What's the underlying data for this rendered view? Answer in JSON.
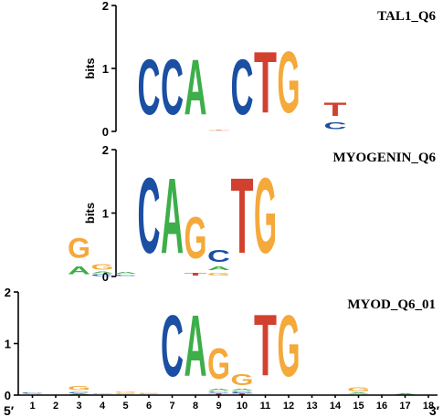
{
  "colors": {
    "A": "#3dae4a",
    "C": "#1a4fa3",
    "G": "#f4a93a",
    "T": "#d2412f"
  },
  "y_axis_label": "bits",
  "five_prime_label": "5′",
  "three_prime_label": "3′",
  "position_labels": [
    "1",
    "2",
    "3",
    "4",
    "5",
    "6",
    "7",
    "8",
    "9",
    "10",
    "11",
    "12",
    "13",
    "14",
    "15",
    "16",
    "17",
    "18"
  ],
  "chart_data": [
    {
      "type": "sequence-logo",
      "title": "TAL1_Q6",
      "ylabel": "bits",
      "ylim": [
        0,
        2
      ],
      "yticks": [
        "0",
        "1",
        "2"
      ],
      "start_position": 6,
      "columns": [
        {
          "position": 6,
          "letters": [
            {
              "base": "C",
              "bits": 1.4
            }
          ]
        },
        {
          "position": 7,
          "letters": [
            {
              "base": "C",
              "bits": 1.4
            }
          ]
        },
        {
          "position": 8,
          "letters": [
            {
              "base": "A",
              "bits": 1.4
            }
          ]
        },
        {
          "position": 9,
          "letters": [
            {
              "base": "G",
              "bits": 0.02
            },
            {
              "base": "T",
              "bits": 0.02
            }
          ]
        },
        {
          "position": 10,
          "letters": [
            {
              "base": "C",
              "bits": 1.4
            }
          ]
        },
        {
          "position": 11,
          "letters": [
            {
              "base": "T",
              "bits": 1.55
            }
          ]
        },
        {
          "position": 12,
          "letters": [
            {
              "base": "G",
              "bits": 1.55
            }
          ]
        },
        {
          "position": 13,
          "letters": []
        },
        {
          "position": 14,
          "letters": [
            {
              "base": "C",
              "bits": 0.18
            },
            {
              "base": "T",
              "bits": 0.35
            }
          ]
        }
      ]
    },
    {
      "type": "sequence-logo",
      "title": "MYOGENIN_Q6",
      "ylabel": "bits",
      "ylim": [
        0,
        2
      ],
      "yticks": [
        "0",
        "1",
        "2"
      ],
      "start_position": 3,
      "columns": [
        {
          "position": 3,
          "letters": [
            {
              "base": "A",
              "bits": 0.2
            },
            {
              "base": "G",
              "bits": 0.5
            }
          ]
        },
        {
          "position": 4,
          "letters": [
            {
              "base": "C",
              "bits": 0.04
            },
            {
              "base": "A",
              "bits": 0.04
            },
            {
              "base": "G",
              "bits": 0.14
            }
          ]
        },
        {
          "position": 5,
          "letters": [
            {
              "base": "C",
              "bits": 0.03
            },
            {
              "base": "A",
              "bits": 0.05
            }
          ]
        },
        {
          "position": 6,
          "letters": [
            {
              "base": "C",
              "bits": 1.9
            }
          ]
        },
        {
          "position": 7,
          "letters": [
            {
              "base": "A",
              "bits": 1.9
            }
          ]
        },
        {
          "position": 8,
          "letters": [
            {
              "base": "T",
              "bits": 0.08
            },
            {
              "base": "G",
              "bits": 1.05
            }
          ]
        },
        {
          "position": 9,
          "letters": [
            {
              "base": "G",
              "bits": 0.08
            },
            {
              "base": "A",
              "bits": 0.09
            },
            {
              "base": "C",
              "bits": 0.3
            }
          ]
        },
        {
          "position": 10,
          "letters": [
            {
              "base": "T",
              "bits": 1.9
            }
          ]
        },
        {
          "position": 11,
          "letters": [
            {
              "base": "G",
              "bits": 1.9
            }
          ]
        }
      ]
    },
    {
      "type": "sequence-logo",
      "title": "MYOD_Q6_01",
      "ylabel": "bits",
      "ylim": [
        0,
        2
      ],
      "yticks": [
        "0",
        "1",
        "2"
      ],
      "start_position": 1,
      "columns": [
        {
          "position": 1,
          "letters": [
            {
              "base": "G",
              "bits": 0.02
            },
            {
              "base": "C",
              "bits": 0.03
            }
          ]
        },
        {
          "position": 2,
          "letters": []
        },
        {
          "position": 3,
          "letters": [
            {
              "base": "A",
              "bits": 0.03
            },
            {
              "base": "C",
              "bits": 0.04
            },
            {
              "base": "G",
              "bits": 0.12
            }
          ]
        },
        {
          "position": 4,
          "letters": [
            {
              "base": "G",
              "bits": 0.02
            },
            {
              "base": "C",
              "bits": 0.02
            }
          ]
        },
        {
          "position": 5,
          "letters": [
            {
              "base": "A",
              "bits": 0.02
            },
            {
              "base": "C",
              "bits": 0.02
            },
            {
              "base": "G",
              "bits": 0.04
            }
          ]
        },
        {
          "position": 6,
          "letters": [
            {
              "base": "A",
              "bits": 0.02
            },
            {
              "base": "C",
              "bits": 0.02
            },
            {
              "base": "G",
              "bits": 0.02
            }
          ]
        },
        {
          "position": 7,
          "letters": [
            {
              "base": "C",
              "bits": 1.9
            }
          ]
        },
        {
          "position": 8,
          "letters": [
            {
              "base": "A",
              "bits": 1.9
            }
          ]
        },
        {
          "position": 9,
          "letters": [
            {
              "base": "T",
              "bits": 0.04
            },
            {
              "base": "C",
              "bits": 0.04
            },
            {
              "base": "A",
              "bits": 0.05
            },
            {
              "base": "G",
              "bits": 0.95
            }
          ]
        },
        {
          "position": 10,
          "letters": [
            {
              "base": "T",
              "bits": 0.03
            },
            {
              "base": "C",
              "bits": 0.05
            },
            {
              "base": "A",
              "bits": 0.05
            },
            {
              "base": "G",
              "bits": 0.35
            }
          ]
        },
        {
          "position": 11,
          "letters": [
            {
              "base": "G",
              "bits": 0.02
            },
            {
              "base": "T",
              "bits": 1.9
            }
          ]
        },
        {
          "position": 12,
          "letters": [
            {
              "base": "G",
              "bits": 1.9
            }
          ]
        },
        {
          "position": 13,
          "letters": []
        },
        {
          "position": 14,
          "letters": []
        },
        {
          "position": 15,
          "letters": [
            {
              "base": "C",
              "bits": 0.02
            },
            {
              "base": "A",
              "bits": 0.03
            },
            {
              "base": "G",
              "bits": 0.12
            }
          ]
        },
        {
          "position": 16,
          "letters": []
        },
        {
          "position": 17,
          "letters": [
            {
              "base": "A",
              "bits": 0.03
            }
          ]
        },
        {
          "position": 18,
          "letters": []
        }
      ]
    }
  ]
}
